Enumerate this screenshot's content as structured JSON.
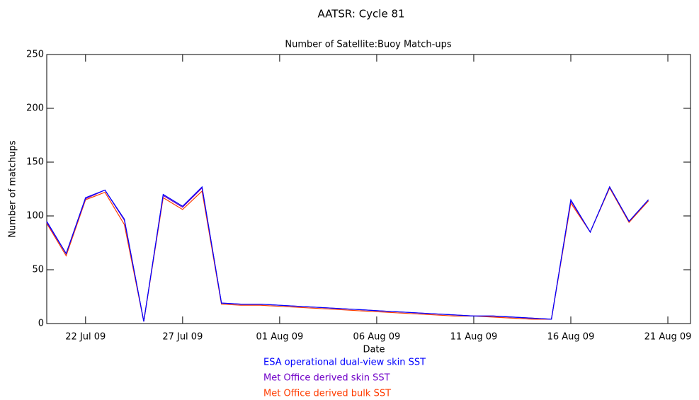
{
  "chart_data": {
    "type": "line",
    "title": "AATSR: Cycle 81",
    "subtitle": "Number of Satellite:Buoy Match-ups",
    "x_label": "Date",
    "y_label": "Number of matchups",
    "x": [
      "2009-07-20",
      "2009-07-21",
      "2009-07-22",
      "2009-07-23",
      "2009-07-24",
      "2009-07-25",
      "2009-07-26",
      "2009-07-27",
      "2009-07-28",
      "2009-07-29",
      "2009-07-30",
      "2009-07-31",
      "2009-08-01",
      "2009-08-02",
      "2009-08-03",
      "2009-08-04",
      "2009-08-05",
      "2009-08-06",
      "2009-08-07",
      "2009-08-08",
      "2009-08-09",
      "2009-08-10",
      "2009-08-11",
      "2009-08-12",
      "2009-08-13",
      "2009-08-14",
      "2009-08-15",
      "2009-08-16",
      "2009-08-17",
      "2009-08-18",
      "2009-08-19",
      "2009-08-20"
    ],
    "series": [
      {
        "name": "ESA operational dual-view skin SST",
        "color": "#0000ff",
        "values": [
          95,
          65,
          117,
          124,
          97,
          2,
          120,
          109,
          127,
          19,
          18,
          18,
          17,
          16,
          15,
          14,
          13,
          12,
          11,
          10,
          9,
          8,
          7,
          7,
          6,
          5,
          4,
          115,
          85,
          127,
          95,
          115
        ]
      },
      {
        "name": "Met Office derived skin SST",
        "color": "#7000c8",
        "values": [
          94,
          65,
          116,
          124,
          96,
          2,
          119,
          108,
          126,
          19,
          18,
          18,
          17,
          16,
          15,
          14,
          13,
          12,
          11,
          10,
          9,
          8,
          7,
          7,
          6,
          5,
          4,
          114,
          85,
          127,
          95,
          115
        ]
      },
      {
        "name": "Met Office derived bulk SST",
        "color": "#ff3c00",
        "values": [
          93,
          63,
          115,
          122,
          92,
          2,
          117,
          106,
          123,
          18,
          17,
          17,
          16,
          15,
          14,
          13,
          12,
          11,
          10,
          9,
          8,
          7,
          7,
          6,
          5,
          4,
          4,
          112,
          85,
          126,
          94,
          114
        ]
      }
    ],
    "xlim": [
      "2009-07-20",
      "2009-08-22T04:00"
    ],
    "xticks": [
      {
        "value": "2009-07-22",
        "label": "22 Jul 09"
      },
      {
        "value": "2009-07-27",
        "label": "27 Jul 09"
      },
      {
        "value": "2009-08-01",
        "label": "01 Aug 09"
      },
      {
        "value": "2009-08-06",
        "label": "06 Aug 09"
      },
      {
        "value": "2009-08-11",
        "label": "11 Aug 09"
      },
      {
        "value": "2009-08-16",
        "label": "16 Aug 09"
      },
      {
        "value": "2009-08-21",
        "label": "21 Aug 09"
      }
    ],
    "ylim": [
      0,
      250
    ],
    "yticks": [
      0,
      50,
      100,
      150,
      200,
      250
    ],
    "grid": false
  }
}
